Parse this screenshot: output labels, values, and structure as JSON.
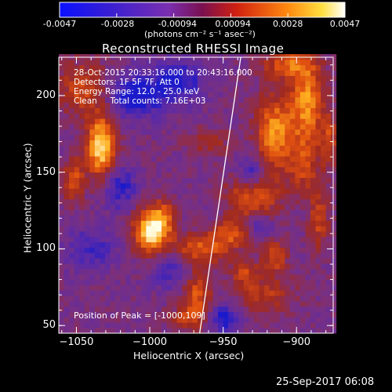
{
  "colorbar": {
    "tick_labels": [
      "-0.0047",
      "-0.0028",
      "-0.00094",
      "0.00094",
      "0.0028",
      "0.0047"
    ],
    "label": "(photons cm⁻² s⁻¹ asec⁻²)"
  },
  "chart_data": {
    "type": "heatmap",
    "title": "Reconstructed RHESSI Image",
    "xlabel": "Heliocentric X (arcsec)",
    "ylabel": "Heliocentric Y (arcsec)",
    "xlim": [
      -1062,
      -875
    ],
    "ylim": [
      45,
      225
    ],
    "x_ticks": [
      -1050,
      -1000,
      -950,
      -900
    ],
    "y_ticks": [
      50,
      100,
      150,
      200
    ],
    "value_range": [
      -0.0047,
      0.0047
    ],
    "colormap_colors": [
      "#1a1acc",
      "#5a2aa8",
      "#7a3080",
      "#a02a20",
      "#e05010",
      "#ffb020",
      "#ffffe8"
    ],
    "annotations": [
      "28-Oct-2015 20:33:16.000 to 20:43:16.000",
      "Detectors: 1F 5F 7F, Att 0",
      "Energy Range: 12.0 - 25.0 keV",
      "Clean     Total counts: 7.16E+03"
    ],
    "peak_label": "Position of Peak = [-1000,109]",
    "peak": [
      -1000,
      109
    ],
    "limb_line": [
      [
        -966,
        45
      ],
      [
        -938,
        225
      ]
    ],
    "sources": [
      {
        "x": -1033,
        "y": 167,
        "amp": 1.0,
        "sx": 7,
        "sy": 14
      },
      {
        "x": -1000,
        "y": 112,
        "amp": 1.0,
        "sx": 8,
        "sy": 10
      },
      {
        "x": -1052,
        "y": 145,
        "amp": 0.55,
        "sx": 5,
        "sy": 10
      },
      {
        "x": -1045,
        "y": 205,
        "amp": 0.5,
        "sx": 12,
        "sy": 12
      },
      {
        "x": -965,
        "y": 100,
        "amp": 0.55,
        "sx": 14,
        "sy": 7
      },
      {
        "x": -930,
        "y": 135,
        "amp": 0.6,
        "sx": 12,
        "sy": 12
      },
      {
        "x": -915,
        "y": 175,
        "amp": 0.75,
        "sx": 9,
        "sy": 18
      },
      {
        "x": -893,
        "y": 195,
        "amp": 0.75,
        "sx": 8,
        "sy": 18
      },
      {
        "x": -905,
        "y": 220,
        "amp": 0.55,
        "sx": 12,
        "sy": 6
      },
      {
        "x": -945,
        "y": 110,
        "amp": 0.45,
        "sx": 10,
        "sy": 6
      },
      {
        "x": -968,
        "y": 70,
        "amp": 0.55,
        "sx": 7,
        "sy": 12
      },
      {
        "x": -990,
        "y": 120,
        "amp": 0.45,
        "sx": 6,
        "sy": 9
      },
      {
        "x": -935,
        "y": 85,
        "amp": 0.45,
        "sx": 6,
        "sy": 6
      },
      {
        "x": -915,
        "y": 95,
        "amp": 0.5,
        "sx": 6,
        "sy": 8
      },
      {
        "x": -922,
        "y": 70,
        "amp": 0.4,
        "sx": 14,
        "sy": 8
      },
      {
        "x": -885,
        "y": 120,
        "amp": 0.45,
        "sx": 5,
        "sy": 14
      },
      {
        "x": -895,
        "y": 155,
        "amp": 0.45,
        "sx": 7,
        "sy": 12
      },
      {
        "x": -878,
        "y": 170,
        "amp": 0.45,
        "sx": 4,
        "sy": 12
      },
      {
        "x": -960,
        "y": 170,
        "amp": 0.3,
        "sx": 10,
        "sy": 6
      },
      {
        "x": -975,
        "y": 55,
        "amp": 0.35,
        "sx": 10,
        "sy": 5
      },
      {
        "x": -930,
        "y": 150,
        "amp": -0.55,
        "sx": 8,
        "sy": 8
      },
      {
        "x": -1010,
        "y": 200,
        "amp": -0.6,
        "sx": 14,
        "sy": 10
      },
      {
        "x": -980,
        "y": 210,
        "amp": -0.5,
        "sx": 12,
        "sy": 10
      },
      {
        "x": -925,
        "y": 115,
        "amp": -0.45,
        "sx": 6,
        "sy": 6
      },
      {
        "x": -1020,
        "y": 140,
        "amp": -0.45,
        "sx": 8,
        "sy": 10
      },
      {
        "x": -950,
        "y": 55,
        "amp": -0.5,
        "sx": 8,
        "sy": 7
      },
      {
        "x": -985,
        "y": 85,
        "amp": -0.35,
        "sx": 10,
        "sy": 8
      },
      {
        "x": -1040,
        "y": 100,
        "amp": -0.35,
        "sx": 12,
        "sy": 10
      }
    ]
  },
  "timestamp": "25-Sep-2017 06:08"
}
